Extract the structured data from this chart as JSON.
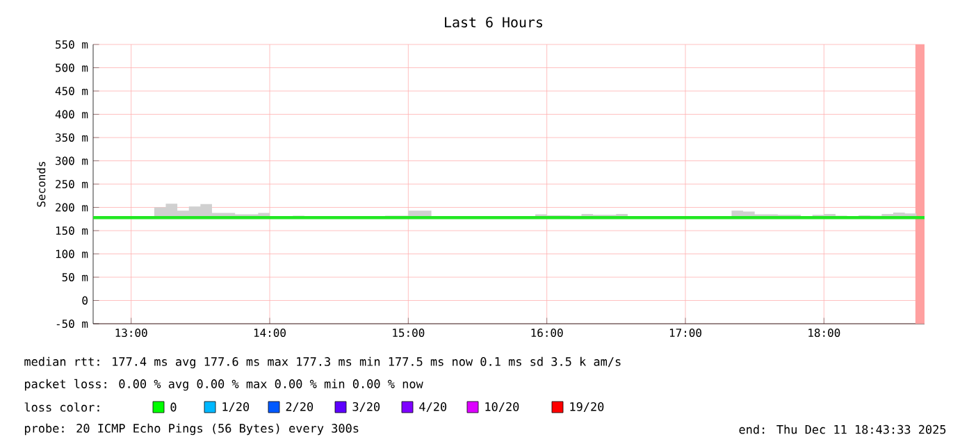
{
  "chart_data": {
    "type": "line",
    "title": "Last 6 Hours",
    "ylabel": "Seconds",
    "xlim": [
      12.7258,
      18.7258
    ],
    "xticks": [
      {
        "value": 13,
        "label": "13:00"
      },
      {
        "value": 14,
        "label": "14:00"
      },
      {
        "value": 15,
        "label": "15:00"
      },
      {
        "value": 16,
        "label": "16:00"
      },
      {
        "value": 17,
        "label": "17:00"
      },
      {
        "value": 18,
        "label": "18:00"
      }
    ],
    "ylim": [
      -50,
      550
    ],
    "yticks": [
      {
        "value": -50,
        "label": "-50 m"
      },
      0,
      {
        "value": 50,
        "label": "50 m"
      },
      {
        "value": 100,
        "label": "100 m"
      },
      {
        "value": 150,
        "label": "150 m"
      },
      {
        "value": 200,
        "label": "200 m"
      },
      {
        "value": 250,
        "label": "250 m"
      },
      {
        "value": 300,
        "label": "300 m"
      },
      {
        "value": 350,
        "label": "350 m"
      },
      {
        "value": 400,
        "label": "400 m"
      },
      {
        "value": 450,
        "label": "450 m"
      },
      {
        "value": 500,
        "label": "500 m"
      },
      {
        "value": 550,
        "label": "550 m"
      }
    ],
    "grid": true,
    "marker": "none",
    "line_style": "solid",
    "series": [
      {
        "color": "#22e822",
        "x": [
          12.7258,
          12.8333,
          13.0,
          13.1667,
          13.25,
          13.3333,
          13.4167,
          13.5,
          13.5833,
          13.75,
          13.9167,
          14.0,
          14.1667,
          14.25,
          14.3333,
          14.5,
          14.6667,
          14.8333,
          15.0,
          15.1667,
          15.3333,
          15.5,
          15.6667,
          15.8333,
          15.9167,
          16.0,
          16.1667,
          16.25,
          16.3333,
          16.5,
          16.5833,
          16.6667,
          16.8333,
          17.0,
          17.1667,
          17.3333,
          17.4167,
          17.5,
          17.6667,
          17.8333,
          17.9167,
          18.0,
          18.0833,
          18.1667,
          18.25,
          18.3333,
          18.4167,
          18.5,
          18.5833,
          18.6667,
          18.7258
        ],
        "values": [
          178,
          178,
          178,
          178,
          178,
          178,
          178,
          178,
          178,
          178,
          178,
          178,
          178,
          178,
          178,
          178,
          178,
          178,
          178,
          178,
          178,
          178,
          178,
          178,
          178,
          178,
          178,
          178,
          178,
          178,
          178,
          178,
          178,
          178,
          178,
          178,
          178,
          178,
          178,
          178,
          178,
          178,
          178,
          178,
          178,
          178,
          178,
          178,
          178,
          178,
          178
        ],
        "lower": [
          176,
          176,
          176,
          176,
          176,
          176,
          176,
          176,
          176,
          176,
          176,
          176,
          176,
          176,
          176,
          176,
          176,
          176,
          176,
          176,
          176,
          176,
          176,
          176,
          176,
          176,
          176,
          176,
          176,
          176,
          176,
          176,
          176,
          176,
          176,
          176,
          176,
          176,
          176,
          176,
          176,
          176,
          176,
          176,
          176,
          176,
          176,
          176,
          176,
          176,
          176
        ],
        "upper": [
          178,
          178,
          178,
          200,
          208,
          193,
          202,
          207,
          188,
          185,
          188,
          180,
          182,
          179,
          178,
          178,
          179,
          182,
          193,
          179,
          178,
          180,
          179,
          181,
          185,
          183,
          182,
          186,
          184,
          186,
          179,
          179,
          178,
          178,
          178,
          193,
          191,
          185,
          184,
          178,
          184,
          186,
          182,
          180,
          183,
          182,
          186,
          189,
          187,
          178,
          178
        ]
      }
    ],
    "bands": [
      {
        "axis": "x",
        "from": 18.66,
        "to": 18.7258,
        "color": "#ffa0a0"
      }
    ],
    "annotations": [
      "median rtt:  177.4 ms avg  177.6 ms max  177.3 ms min  177.5 ms now  0.1 ms sd  3.5 k am/s",
      "packet loss: 0.00 % avg  0.00 % max  0.00 % min  0.00 % now",
      "loss color:",
      "0",
      "1/20",
      "2/20",
      "3/20",
      "4/20",
      "10/20",
      "19/20",
      "probe:       20 ICMP Echo Pings (56 Bytes) every 300s",
      "end: Thu Dec 11 18:43:33 2025"
    ]
  }
}
